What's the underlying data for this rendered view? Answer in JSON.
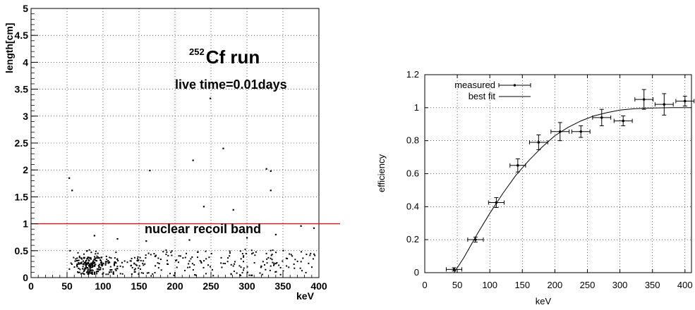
{
  "chart_data": [
    {
      "type": "scatter",
      "title": "Cf run",
      "title_superscript": "252",
      "annotation_live_time": "live time=0.01days",
      "band_label": "nuclear recoil band",
      "xlabel": "keV",
      "ylabel": "length[cm]",
      "xlim": [
        0,
        400
      ],
      "ylim": [
        0,
        5
      ],
      "x_ticks": [
        "0",
        "50",
        "100",
        "150",
        "200",
        "250",
        "300",
        "350",
        "400"
      ],
      "y_ticks": [
        "0",
        "0.5",
        "1",
        "1.5",
        "2",
        "2.5",
        "3",
        "3.5",
        "4",
        "4.5",
        "5"
      ],
      "grid": true,
      "reference_line": {
        "y": 1.0,
        "color": "#ff0000"
      },
      "outliers": [
        {
          "x": 53,
          "y": 1.85
        },
        {
          "x": 57,
          "y": 1.62
        },
        {
          "x": 165,
          "y": 1.99
        },
        {
          "x": 225,
          "y": 2.18
        },
        {
          "x": 240,
          "y": 1.32
        },
        {
          "x": 249,
          "y": 3.33
        },
        {
          "x": 267,
          "y": 2.4
        },
        {
          "x": 281,
          "y": 1.26
        },
        {
          "x": 327,
          "y": 2.02
        },
        {
          "x": 333,
          "y": 1.98
        },
        {
          "x": 333,
          "y": 1.62
        },
        {
          "x": 375,
          "y": 0.96
        },
        {
          "x": 393,
          "y": 0.92
        },
        {
          "x": 88,
          "y": 0.78
        },
        {
          "x": 120,
          "y": 0.72
        },
        {
          "x": 160,
          "y": 0.68
        },
        {
          "x": 220,
          "y": 0.7
        },
        {
          "x": 300,
          "y": 0.74
        },
        {
          "x": 340,
          "y": 0.8
        }
      ],
      "bulk_points": {
        "description_free": true,
        "x_range": [
          50,
          395
        ],
        "y_range": [
          0.0,
          0.6
        ],
        "count": 450,
        "concentrated_near_x": 100,
        "concentrated_near_y": 0.22
      }
    },
    {
      "type": "line",
      "xlabel": "keV",
      "ylabel": "efficiency",
      "xlim": [
        0,
        410
      ],
      "ylim": [
        0,
        1.2
      ],
      "x_ticks": [
        "0",
        "50",
        "100",
        "150",
        "200",
        "250",
        "300",
        "350",
        "400"
      ],
      "y_ticks": [
        "0",
        "0.2",
        "0.4",
        "0.6",
        "0.8",
        "1",
        "1.2"
      ],
      "grid": true,
      "legend": {
        "placement": "top-left",
        "entries": [
          "measured",
          "best fit"
        ]
      },
      "series": [
        {
          "name": "measured",
          "style": "points-with-errorbars",
          "points": [
            {
              "x": 45,
              "y": 0.02,
              "xerr": 12,
              "yerr": 0.01
            },
            {
              "x": 78,
              "y": 0.2,
              "xerr": 12,
              "yerr": 0.015
            },
            {
              "x": 110,
              "y": 0.425,
              "xerr": 12,
              "yerr": 0.03
            },
            {
              "x": 143,
              "y": 0.65,
              "xerr": 12,
              "yerr": 0.04
            },
            {
              "x": 175,
              "y": 0.79,
              "xerr": 14,
              "yerr": 0.045
            },
            {
              "x": 208,
              "y": 0.855,
              "xerr": 14,
              "yerr": 0.055
            },
            {
              "x": 240,
              "y": 0.855,
              "xerr": 14,
              "yerr": 0.035
            },
            {
              "x": 272,
              "y": 0.94,
              "xerr": 14,
              "yerr": 0.05
            },
            {
              "x": 305,
              "y": 0.92,
              "xerr": 14,
              "yerr": 0.03
            },
            {
              "x": 337,
              "y": 1.05,
              "xerr": 14,
              "yerr": 0.06
            },
            {
              "x": 368,
              "y": 1.02,
              "xerr": 14,
              "yerr": 0.065
            },
            {
              "x": 400,
              "y": 1.04,
              "xerr": 14,
              "yerr": 0.03
            }
          ]
        },
        {
          "name": "best fit",
          "style": "line",
          "x": [
            45,
            60,
            80,
            100,
            120,
            140,
            160,
            180,
            200,
            220,
            240,
            260,
            280,
            300,
            320,
            340,
            360,
            380,
            400,
            410
          ],
          "y": [
            0.0,
            0.09,
            0.23,
            0.36,
            0.48,
            0.59,
            0.68,
            0.76,
            0.83,
            0.88,
            0.92,
            0.95,
            0.97,
            0.985,
            0.993,
            0.997,
            0.999,
            1.0,
            1.0,
            1.0
          ]
        }
      ]
    }
  ]
}
